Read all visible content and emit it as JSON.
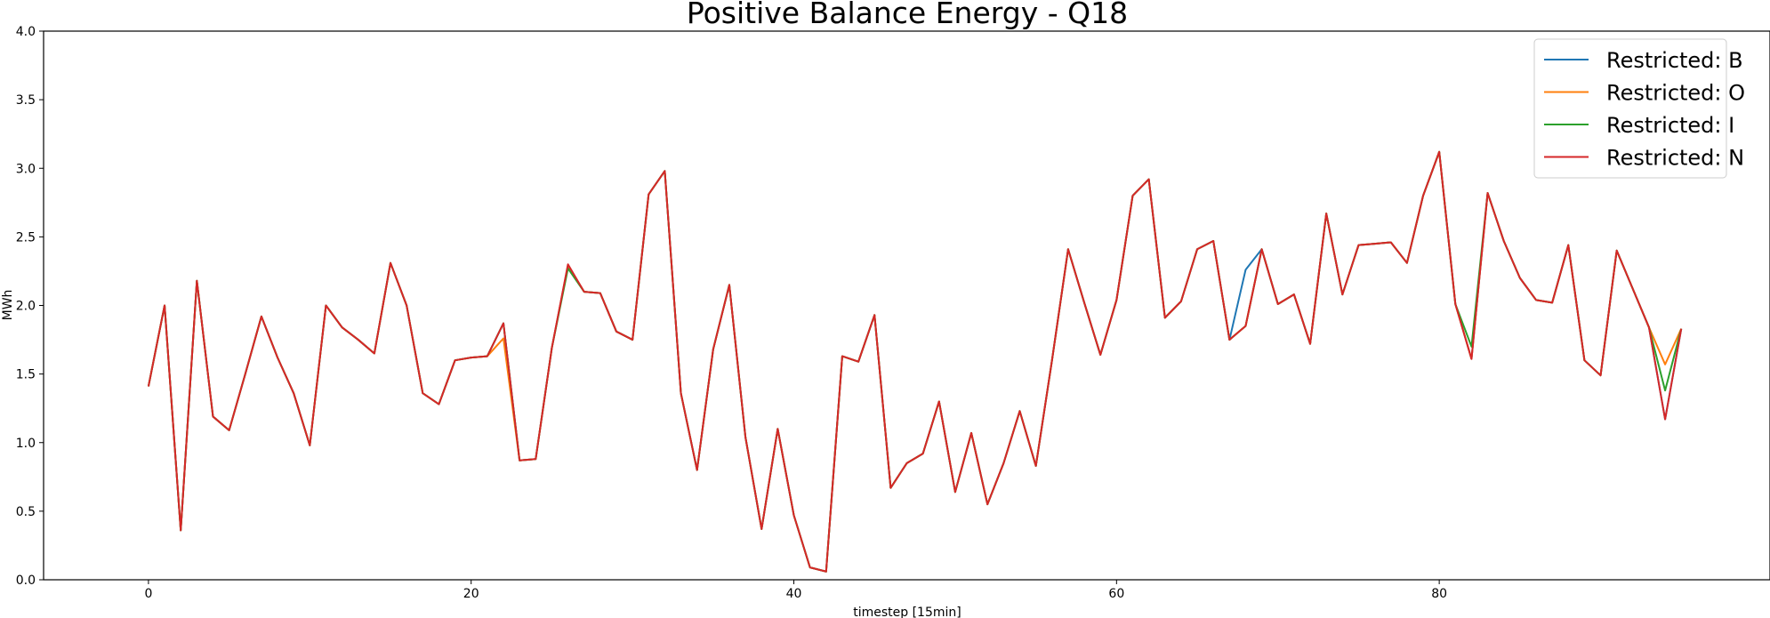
{
  "chart_data": {
    "type": "line",
    "title": "Positive Balance Energy - Q18",
    "xlabel": "timestep [15min]",
    "ylabel": "MWh",
    "xlim": [
      -6.5,
      100.5
    ],
    "ylim": [
      0.0,
      4.0
    ],
    "xticks": [
      0,
      20,
      40,
      60,
      80
    ],
    "xtick_labels": [
      "0",
      "20",
      "40",
      "60",
      "80"
    ],
    "yticks": [
      0.0,
      0.5,
      1.0,
      1.5,
      2.0,
      2.5,
      3.0,
      3.5,
      4.0
    ],
    "ytick_labels": [
      "0.0",
      "0.5",
      "1.0",
      "1.5",
      "2.0",
      "2.5",
      "3.0",
      "3.5",
      "4.0"
    ],
    "grid": false,
    "legend_position": "top-right",
    "series": [
      {
        "name": "Restricted: B",
        "color": "#1f77b4",
        "values": [
          1.41,
          2.0,
          0.36,
          2.18,
          1.19,
          1.09,
          1.5,
          1.92,
          1.62,
          1.36,
          0.98,
          2.0,
          1.84,
          1.75,
          1.65,
          2.31,
          2.0,
          1.36,
          1.28,
          1.6,
          1.62,
          1.63,
          1.87,
          0.87,
          0.88,
          1.69,
          2.29,
          2.1,
          2.09,
          1.81,
          1.75,
          2.81,
          2.98,
          1.36,
          0.8,
          1.68,
          2.15,
          1.04,
          0.37,
          1.1,
          0.47,
          0.09,
          0.06,
          1.63,
          1.59,
          1.93,
          0.67,
          0.85,
          0.92,
          1.3,
          0.64,
          1.07,
          0.55,
          0.85,
          1.23,
          0.83,
          1.6,
          2.41,
          2.02,
          1.64,
          2.04,
          2.8,
          2.92,
          1.91,
          2.03,
          2.41,
          2.47,
          1.75,
          2.26,
          2.41,
          2.01,
          2.08,
          1.72,
          2.67,
          2.08,
          2.44,
          2.45,
          2.46,
          2.31,
          2.8,
          3.12,
          2.01,
          1.61,
          2.82,
          2.47,
          2.2,
          2.04,
          2.02,
          2.44,
          1.6,
          1.49,
          2.4,
          2.12,
          1.84,
          1.17,
          1.83
        ]
      },
      {
        "name": "Restricted: O",
        "color": "#ff7f0e",
        "values": [
          1.41,
          2.0,
          0.36,
          2.18,
          1.19,
          1.09,
          1.5,
          1.92,
          1.62,
          1.36,
          0.98,
          2.0,
          1.84,
          1.75,
          1.65,
          2.31,
          2.0,
          1.36,
          1.28,
          1.6,
          1.62,
          1.63,
          1.76,
          0.87,
          0.88,
          1.69,
          2.29,
          2.1,
          2.09,
          1.81,
          1.75,
          2.81,
          2.98,
          1.36,
          0.8,
          1.68,
          2.15,
          1.04,
          0.37,
          1.1,
          0.47,
          0.09,
          0.06,
          1.63,
          1.59,
          1.93,
          0.67,
          0.85,
          0.92,
          1.3,
          0.64,
          1.07,
          0.55,
          0.85,
          1.23,
          0.83,
          1.6,
          2.41,
          2.02,
          1.64,
          2.04,
          2.8,
          2.92,
          1.91,
          2.03,
          2.41,
          2.47,
          1.75,
          1.85,
          2.41,
          2.01,
          2.08,
          1.72,
          2.67,
          2.08,
          2.44,
          2.45,
          2.46,
          2.31,
          2.8,
          3.12,
          2.01,
          1.61,
          2.82,
          2.47,
          2.2,
          2.04,
          2.02,
          2.44,
          1.6,
          1.49,
          2.4,
          2.12,
          1.84,
          1.57,
          1.83
        ]
      },
      {
        "name": "Restricted: I",
        "color": "#2ca02c",
        "values": [
          1.41,
          2.0,
          0.36,
          2.18,
          1.19,
          1.09,
          1.5,
          1.92,
          1.62,
          1.36,
          0.98,
          2.0,
          1.84,
          1.75,
          1.65,
          2.31,
          2.0,
          1.36,
          1.28,
          1.6,
          1.62,
          1.63,
          1.87,
          0.87,
          0.88,
          1.69,
          2.27,
          2.1,
          2.09,
          1.81,
          1.75,
          2.81,
          2.98,
          1.36,
          0.8,
          1.68,
          2.15,
          1.04,
          0.37,
          1.1,
          0.47,
          0.09,
          0.06,
          1.63,
          1.59,
          1.93,
          0.67,
          0.85,
          0.92,
          1.3,
          0.64,
          1.07,
          0.55,
          0.85,
          1.23,
          0.83,
          1.6,
          2.41,
          2.02,
          1.64,
          2.04,
          2.8,
          2.92,
          1.91,
          2.03,
          2.41,
          2.47,
          1.75,
          1.85,
          2.41,
          2.01,
          2.08,
          1.72,
          2.67,
          2.08,
          2.44,
          2.45,
          2.46,
          2.31,
          2.8,
          3.12,
          2.01,
          1.7,
          2.82,
          2.47,
          2.2,
          2.04,
          2.02,
          2.44,
          1.6,
          1.49,
          2.4,
          2.12,
          1.84,
          1.38,
          1.83
        ]
      },
      {
        "name": "Restricted: N",
        "color": "#d62728",
        "values": [
          1.41,
          2.0,
          0.36,
          2.18,
          1.19,
          1.09,
          1.5,
          1.92,
          1.62,
          1.36,
          0.98,
          2.0,
          1.84,
          1.75,
          1.65,
          2.31,
          2.0,
          1.36,
          1.28,
          1.6,
          1.62,
          1.63,
          1.87,
          0.87,
          0.88,
          1.69,
          2.3,
          2.1,
          2.09,
          1.81,
          1.75,
          2.81,
          2.98,
          1.36,
          0.8,
          1.68,
          2.15,
          1.04,
          0.37,
          1.1,
          0.47,
          0.09,
          0.06,
          1.63,
          1.59,
          1.93,
          0.67,
          0.85,
          0.92,
          1.3,
          0.64,
          1.07,
          0.55,
          0.85,
          1.23,
          0.83,
          1.6,
          2.41,
          2.02,
          1.64,
          2.04,
          2.8,
          2.92,
          1.91,
          2.03,
          2.41,
          2.47,
          1.75,
          1.85,
          2.41,
          2.01,
          2.08,
          1.72,
          2.67,
          2.08,
          2.44,
          2.45,
          2.46,
          2.31,
          2.8,
          3.12,
          2.01,
          1.61,
          2.82,
          2.47,
          2.2,
          2.04,
          2.02,
          2.44,
          1.6,
          1.49,
          2.4,
          2.12,
          1.84,
          1.17,
          1.83
        ]
      }
    ]
  }
}
